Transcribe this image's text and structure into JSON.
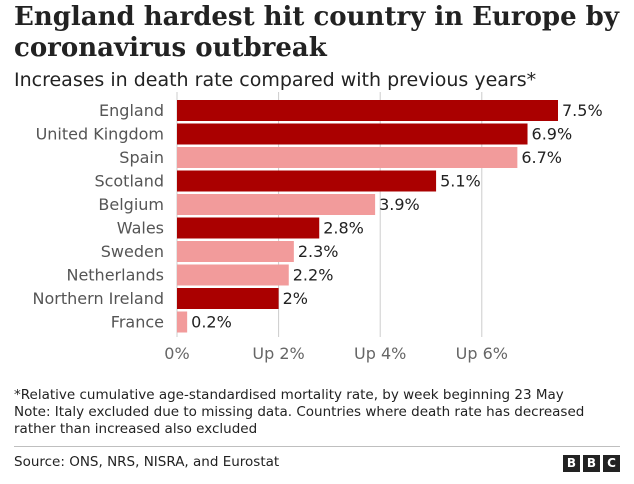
{
  "header": {
    "title": "England hardest hit country in Europe by coronavirus outbreak",
    "subtitle": "Increases in death rate compared with previous years*"
  },
  "chart_data": {
    "type": "bar",
    "orientation": "horizontal",
    "title": "England hardest hit country in Europe by coronavirus outbreak",
    "subtitle": "Increases in death rate compared with previous years*",
    "categories": [
      "England",
      "United Kingdom",
      "Spain",
      "Scotland",
      "Belgium",
      "Wales",
      "Sweden",
      "Netherlands",
      "Northern Ireland",
      "France"
    ],
    "values": [
      7.5,
      6.9,
      6.7,
      5.1,
      3.9,
      2.8,
      2.3,
      2.2,
      2.0,
      0.2
    ],
    "value_labels": [
      "7.5%",
      "6.9%",
      "6.7%",
      "5.1%",
      "3.9%",
      "2.8%",
      "2.3%",
      "2.2%",
      "2%",
      "0.2%"
    ],
    "uk_nation": [
      true,
      true,
      false,
      true,
      false,
      true,
      false,
      false,
      true,
      false
    ],
    "colors": {
      "uk": "#aa0000",
      "other": "#f29b9b",
      "grid": "#cccccc"
    },
    "xlim": [
      0,
      7.5
    ],
    "xticks": [
      0,
      2,
      4,
      6
    ],
    "xtick_labels": [
      "0%",
      "Up 2%",
      "Up 4%",
      "Up 6%"
    ],
    "grid": true
  },
  "notes": {
    "line1": "*Relative cumulative age-standardised mortality rate, by week beginning 23 May",
    "line2": "Note: Italy excluded due to missing data. Countries where death rate has decreased rather than increased also excluded"
  },
  "footer": {
    "source": "Source: ONS, NRS, NISRA, and Eurostat",
    "logo_letters": [
      "B",
      "B",
      "C"
    ]
  }
}
